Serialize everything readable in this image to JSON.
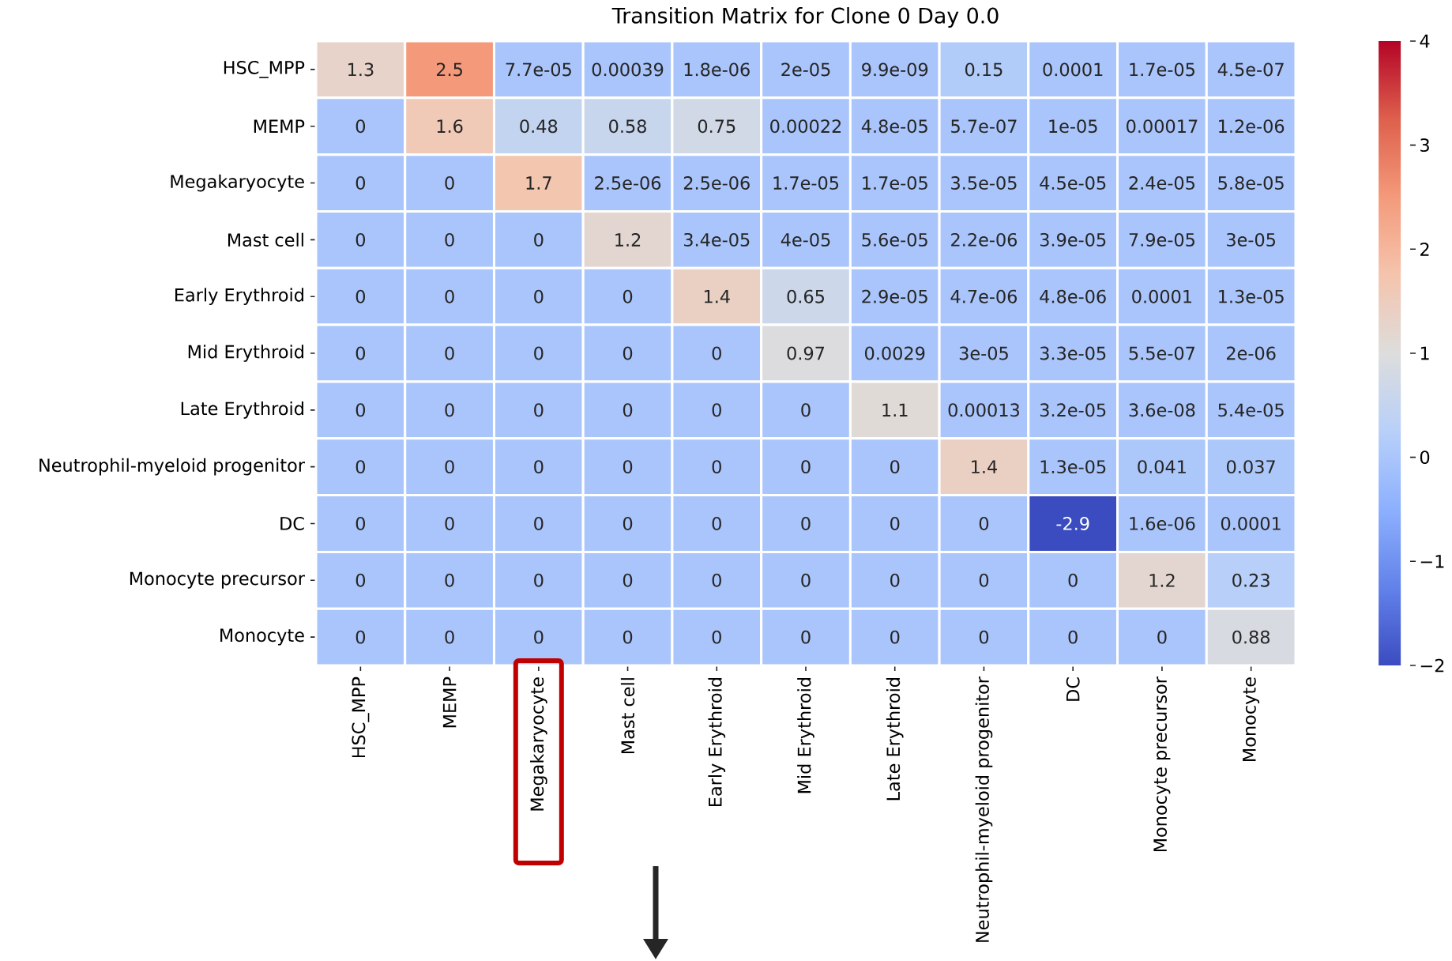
{
  "chart_data": {
    "type": "heatmap",
    "title": "Transition Matrix for Clone 0 Day 0.0",
    "categories": [
      "HSC_MPP",
      "MEMP",
      "Megakaryocyte",
      "Mast cell",
      "Early Erythroid",
      "Mid Erythroid",
      "Late Erythroid",
      "Neutrophil-myeloid progenitor",
      "DC",
      "Monocyte precursor",
      "Monocyte"
    ],
    "y_categories": [
      "HSC_MPP",
      "MEMP",
      "Megakaryocyte",
      "Mast cell",
      "Early Erythroid",
      "Mid Erythroid",
      "Late Erythroid",
      "Neutrophil-myeloid progenitor",
      "DC",
      "Monocyte precursor",
      "Monocyte"
    ],
    "cells": [
      [
        1.3,
        2.5,
        7.7e-05,
        0.00039,
        1.8e-06,
        2e-05,
        9.9e-09,
        0.15,
        0.0001,
        1.7e-05,
        4.5e-07
      ],
      [
        0,
        1.6,
        0.48,
        0.58,
        0.75,
        0.00022,
        4.8e-05,
        5.7e-07,
        1e-05,
        0.00017,
        1.2e-06
      ],
      [
        0,
        0,
        1.7,
        2.5e-06,
        2.5e-06,
        1.7e-05,
        1.7e-05,
        3.5e-05,
        4.5e-05,
        2.4e-05,
        5.8e-05
      ],
      [
        0,
        0,
        0,
        1.2,
        3.4e-05,
        4e-05,
        5.6e-05,
        2.2e-06,
        3.9e-05,
        7.9e-05,
        3e-05
      ],
      [
        0,
        0,
        0,
        0,
        1.4,
        0.65,
        2.9e-05,
        4.7e-06,
        4.8e-06,
        0.0001,
        1.3e-05
      ],
      [
        0,
        0,
        0,
        0,
        0,
        0.97,
        0.0029,
        3e-05,
        3.3e-05,
        5.5e-07,
        2e-06
      ],
      [
        0,
        0,
        0,
        0,
        0,
        0,
        1.1,
        0.00013,
        3.2e-05,
        3.6e-08,
        5.4e-05
      ],
      [
        0,
        0,
        0,
        0,
        0,
        0,
        0,
        1.4,
        1.3e-05,
        0.041,
        0.037
      ],
      [
        0,
        0,
        0,
        0,
        0,
        0,
        0,
        0,
        -2.9,
        1.6e-06,
        0.0001
      ],
      [
        0,
        0,
        0,
        0,
        0,
        0,
        0,
        0,
        0,
        1.2,
        0.23
      ],
      [
        0,
        0,
        0,
        0,
        0,
        0,
        0,
        0,
        0,
        0,
        0.88
      ]
    ],
    "clim": [
      -2,
      4
    ],
    "cticks": [
      {
        "value": -2,
        "label": "−2"
      },
      {
        "value": -1,
        "label": "−1"
      },
      0,
      1,
      2,
      3,
      4
    ],
    "data_labels": true
  }
}
